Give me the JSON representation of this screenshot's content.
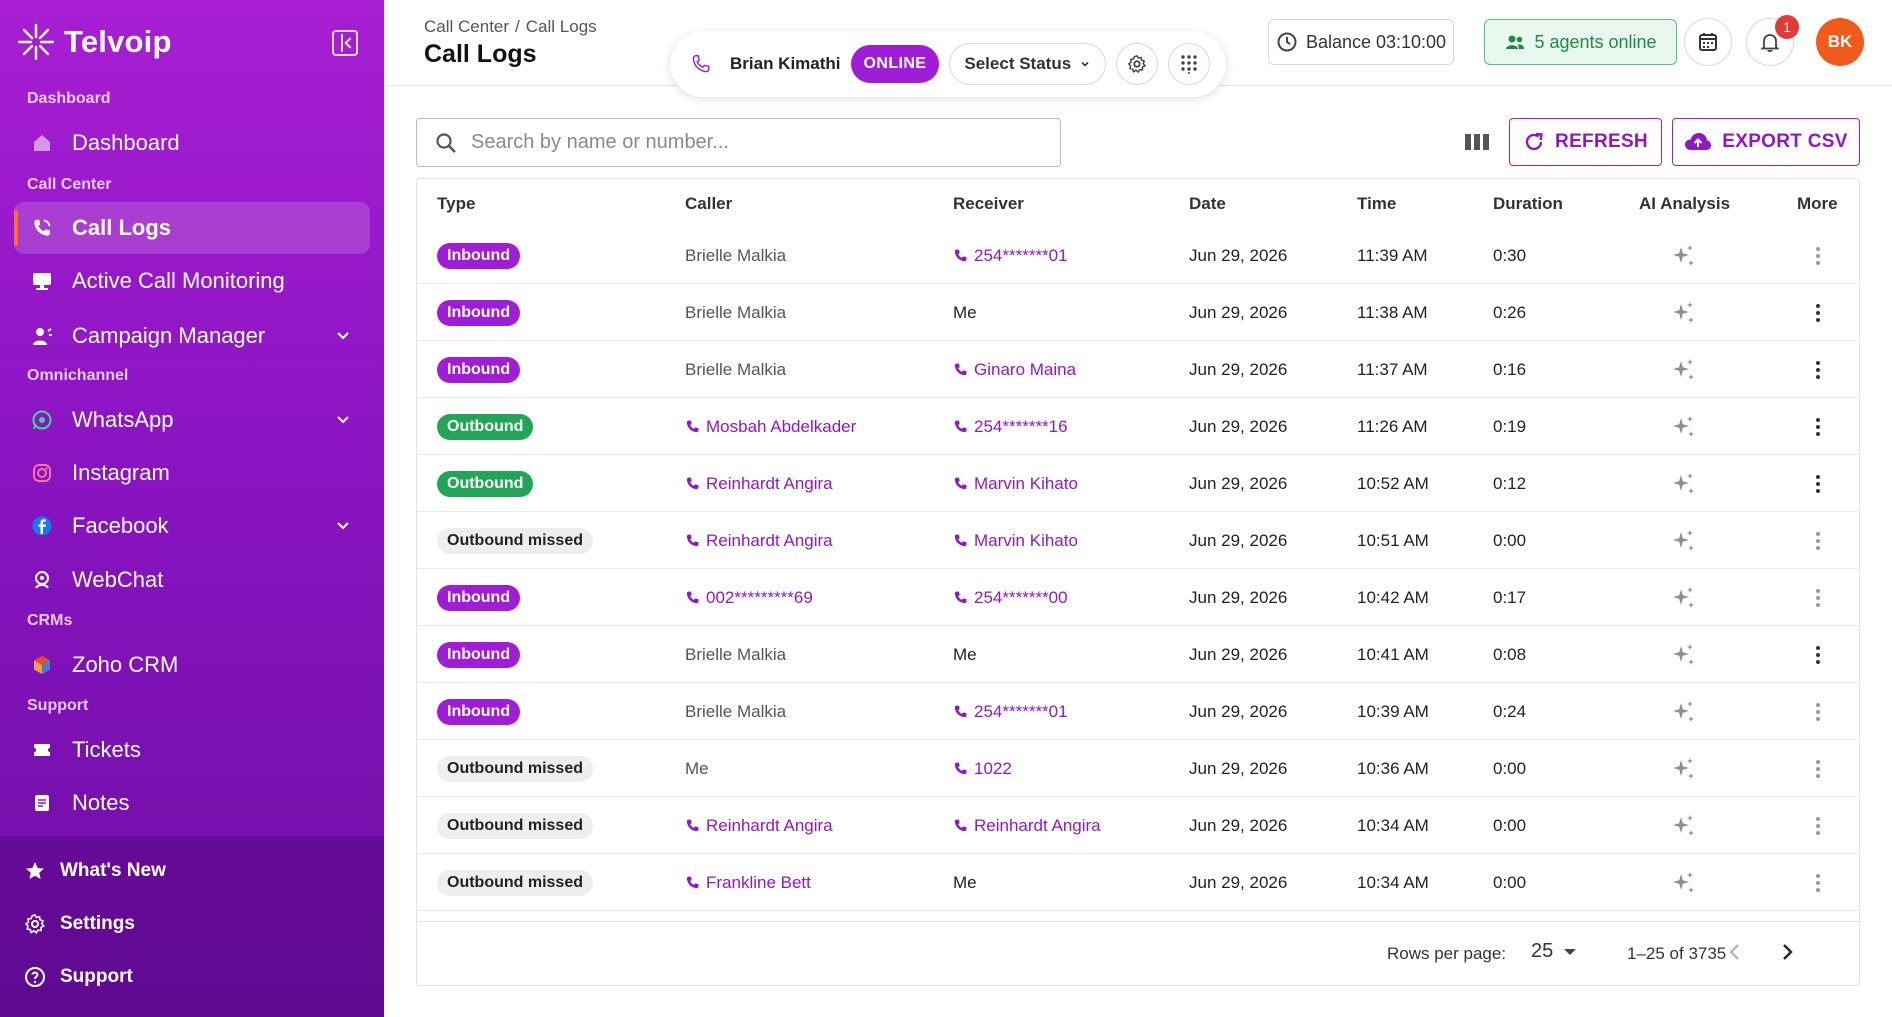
{
  "brand": {
    "name": "Telvoip"
  },
  "sidebar": {
    "sections": [
      {
        "label": "Dashboard"
      },
      {
        "label": "Call Center"
      },
      {
        "label": "Omnichannel"
      },
      {
        "label": "CRMs"
      },
      {
        "label": "Support"
      }
    ],
    "items": [
      {
        "label": "Dashboard",
        "icon": "home-icon"
      },
      {
        "label": "Call Logs",
        "icon": "phone-call-icon",
        "active": true
      },
      {
        "label": "Active Call Monitoring",
        "icon": "monitor-icon"
      },
      {
        "label": "Campaign Manager",
        "icon": "campaign-icon",
        "expandable": true
      },
      {
        "label": "WhatsApp",
        "icon": "whatsapp-icon",
        "expandable": true
      },
      {
        "label": "Instagram",
        "icon": "instagram-icon"
      },
      {
        "label": "Facebook",
        "icon": "facebook-icon",
        "expandable": true
      },
      {
        "label": "WebChat",
        "icon": "webchat-icon"
      },
      {
        "label": "Zoho CRM",
        "icon": "zoho-icon"
      },
      {
        "label": "Tickets",
        "icon": "ticket-icon"
      },
      {
        "label": "Notes",
        "icon": "notes-icon"
      }
    ],
    "footer": [
      {
        "label": "What's New",
        "icon": "star-icon"
      },
      {
        "label": "Settings",
        "icon": "settings-icon"
      },
      {
        "label": "Support",
        "icon": "help-icon"
      }
    ]
  },
  "header": {
    "breadcrumb": [
      "Call Center",
      "Call Logs"
    ],
    "breadcrumb_sep": "/",
    "title": "Call Logs",
    "agent": {
      "name": "Brian Kimathi",
      "status": "ONLINE",
      "status_select": "Select Status"
    },
    "balance": "Balance 03:10:00",
    "agents_online": "5 agents online",
    "notifications_count": "1",
    "avatar_initials": "BK"
  },
  "toolbar": {
    "search_placeholder": "Search by name or number...",
    "refresh_label": "REFRESH",
    "export_label": "EXPORT CSV"
  },
  "table": {
    "columns": [
      "Type",
      "Caller",
      "Receiver",
      "Date",
      "Time",
      "Duration",
      "AI Analysis",
      "More"
    ],
    "rows": [
      {
        "type": "Inbound",
        "caller": "Brielle Malkia",
        "caller_link": false,
        "receiver": "254*******01",
        "receiver_link": true,
        "date": "Jun 29, 2026",
        "time": "11:39 AM",
        "duration": "0:30",
        "more_dim": true
      },
      {
        "type": "Inbound",
        "caller": "Brielle Malkia",
        "caller_link": false,
        "receiver": "Me",
        "receiver_link": false,
        "date": "Jun 29, 2026",
        "time": "11:38 AM",
        "duration": "0:26",
        "more_dim": false
      },
      {
        "type": "Inbound",
        "caller": "Brielle Malkia",
        "caller_link": false,
        "receiver": "Ginaro Maina",
        "receiver_link": true,
        "date": "Jun 29, 2026",
        "time": "11:37 AM",
        "duration": "0:16",
        "more_dim": false
      },
      {
        "type": "Outbound",
        "caller": "Mosbah Abdelkader",
        "caller_link": true,
        "receiver": "254*******16",
        "receiver_link": true,
        "date": "Jun 29, 2026",
        "time": "11:26 AM",
        "duration": "0:19",
        "more_dim": false
      },
      {
        "type": "Outbound",
        "caller": "Reinhardt Angira",
        "caller_link": true,
        "receiver": "Marvin Kihato",
        "receiver_link": true,
        "date": "Jun 29, 2026",
        "time": "10:52 AM",
        "duration": "0:12",
        "more_dim": false
      },
      {
        "type": "Outbound missed",
        "caller": "Reinhardt Angira",
        "caller_link": true,
        "receiver": "Marvin Kihato",
        "receiver_link": true,
        "date": "Jun 29, 2026",
        "time": "10:51 AM",
        "duration": "0:00",
        "more_dim": true
      },
      {
        "type": "Inbound",
        "caller": "002*********69",
        "caller_link": true,
        "receiver": "254*******00",
        "receiver_link": true,
        "date": "Jun 29, 2026",
        "time": "10:42 AM",
        "duration": "0:17",
        "more_dim": true
      },
      {
        "type": "Inbound",
        "caller": "Brielle Malkia",
        "caller_link": false,
        "receiver": "Me",
        "receiver_link": false,
        "date": "Jun 29, 2026",
        "time": "10:41 AM",
        "duration": "0:08",
        "more_dim": false
      },
      {
        "type": "Inbound",
        "caller": "Brielle Malkia",
        "caller_link": false,
        "receiver": "254*******01",
        "receiver_link": true,
        "date": "Jun 29, 2026",
        "time": "10:39 AM",
        "duration": "0:24",
        "more_dim": true
      },
      {
        "type": "Outbound missed",
        "caller": "Me",
        "caller_link": false,
        "receiver": "1022",
        "receiver_link": true,
        "date": "Jun 29, 2026",
        "time": "10:36 AM",
        "duration": "0:00",
        "more_dim": true
      },
      {
        "type": "Outbound missed",
        "caller": "Reinhardt Angira",
        "caller_link": true,
        "receiver": "Reinhardt Angira",
        "receiver_link": true,
        "date": "Jun 29, 2026",
        "time": "10:34 AM",
        "duration": "0:00",
        "more_dim": true
      },
      {
        "type": "Outbound missed",
        "caller": "Frankline Bett",
        "caller_link": true,
        "receiver": "Me",
        "receiver_link": false,
        "date": "Jun 29, 2026",
        "time": "10:34 AM",
        "duration": "0:00",
        "more_dim": true
      }
    ]
  },
  "pagination": {
    "rows_per_page_label": "Rows per page:",
    "rows_per_page": "25",
    "range": "1–25 of 3735"
  },
  "colors": {
    "brand_purple": "#a01dd8",
    "outbound_green": "#23a557",
    "missed_gray": "#eeeeee",
    "avatar_orange": "#f05a1a"
  }
}
